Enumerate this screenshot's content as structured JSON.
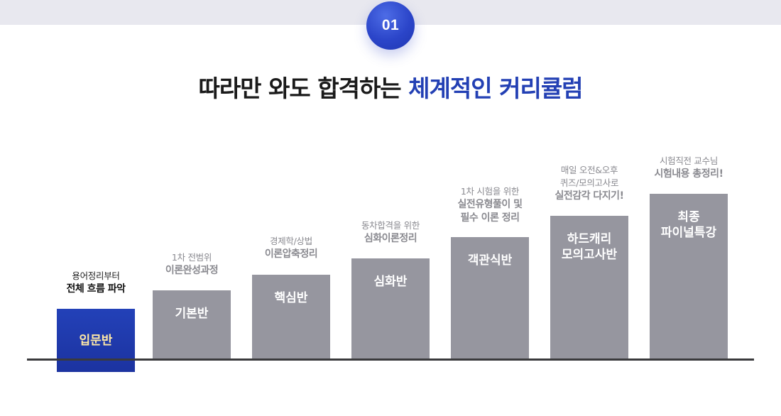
{
  "step_number": "01",
  "title": {
    "prefix": "따라만 와도 합격하는",
    "highlight": "체계적인 커리큘럼"
  },
  "colors": {
    "accent": "#2340b4",
    "active_bar": "#1f36a8",
    "inactive_bar": "#96969f",
    "active_label": "#ffe9a6"
  },
  "stages": [
    {
      "name": "입문반",
      "caption_sub": "용어정리부터",
      "caption_main": "전체 흐름 파악",
      "active": true
    },
    {
      "name": "기본반",
      "caption_sub": "1차 전범위",
      "caption_main": "이론완성과정",
      "active": false
    },
    {
      "name": "핵심반",
      "caption_sub": "경제학/상법",
      "caption_main": "이론압축정리",
      "active": false
    },
    {
      "name": "심화반",
      "caption_sub": "동차합격을 위한",
      "caption_main": "심화이론정리",
      "active": false
    },
    {
      "name": "객관식반",
      "caption_sub": "1차 시험을 위한",
      "caption_main": "실전유형풀이 및\n필수 이론 정리",
      "active": false
    },
    {
      "name": "하드캐리\n모의고사반",
      "caption_sub": "매일 오전&오후\n퀴즈/모의고사로",
      "caption_main": "실전감각 다지기!",
      "active": false
    },
    {
      "name": "최종\n파이널특강",
      "caption_sub": "시험직전 교수님",
      "caption_main": "시험내용 총정리!",
      "active": false
    }
  ]
}
